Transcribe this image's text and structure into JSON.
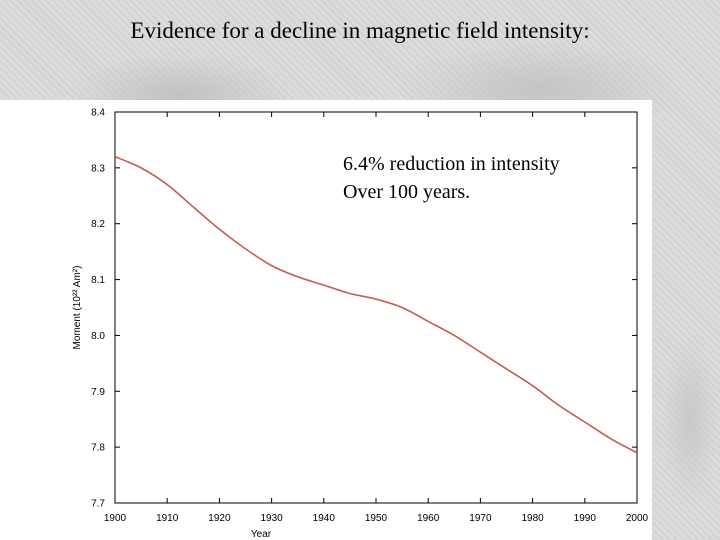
{
  "slide": {
    "title": "Evidence for a decline in magnetic field intensity:"
  },
  "annotation": {
    "line1": "6.4% reduction in intensity",
    "line2": "Over 100 years."
  },
  "colors": {
    "curve": "#c85a50",
    "axis": "#000000",
    "text": "#000000"
  },
  "chart_data": {
    "type": "line",
    "title": "",
    "xlabel": "Year",
    "ylabel": "Moment (10²² Am²)",
    "xlim": [
      1900,
      2000
    ],
    "ylim": [
      7.7,
      8.4
    ],
    "xticks": [
      1900,
      1910,
      1920,
      1930,
      1940,
      1950,
      1960,
      1970,
      1980,
      1990,
      2000
    ],
    "xtick_labels": [
      "1900",
      "1910",
      "1920",
      "1930",
      "1940",
      "1950",
      "1960",
      "1970",
      "1980",
      "1990",
      "2000"
    ],
    "yticks": [
      7.7,
      7.8,
      7.9,
      8.0,
      8.1,
      8.2,
      8.3,
      8.4
    ],
    "ytick_labels": [
      "7.7",
      "7.8",
      "7.9",
      "8.0",
      "8.1",
      "8.2",
      "8.3",
      "8.4"
    ],
    "grid": false,
    "series": [
      {
        "x": [
          1900,
          1905,
          1910,
          1915,
          1920,
          1925,
          1930,
          1935,
          1940,
          1945,
          1950,
          1955,
          1960,
          1965,
          1970,
          1975,
          1980,
          1985,
          1990,
          1995,
          2000
        ],
        "y": [
          8.32,
          8.3,
          8.27,
          8.23,
          8.19,
          8.155,
          8.125,
          8.105,
          8.09,
          8.075,
          8.065,
          8.05,
          8.025,
          8.0,
          7.97,
          7.94,
          7.91,
          7.875,
          7.845,
          7.815,
          7.79
        ]
      }
    ]
  }
}
